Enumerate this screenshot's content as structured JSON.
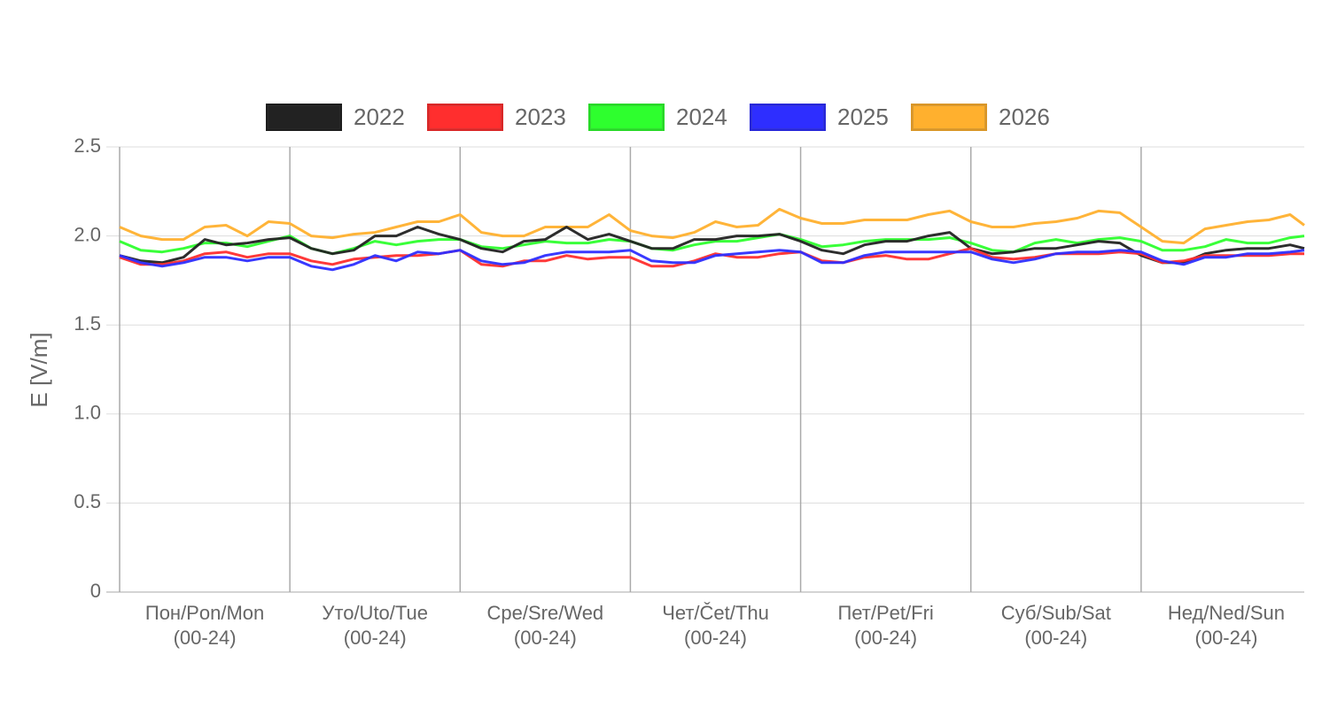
{
  "chart_data": {
    "type": "line",
    "y_label": "E [V/m]",
    "categories": [
      [
        "Пон/Pon/Mon",
        "(00-24)"
      ],
      [
        "Уто/Uto/Tue",
        "(00-24)"
      ],
      [
        "Сре/Sre/Wed",
        "(00-24)"
      ],
      [
        "Чет/Čet/Thu",
        "(00-24)"
      ],
      [
        "Пет/Pet/Fri",
        "(00-24)"
      ],
      [
        "Суб/Sub/Sat",
        "(00-24)"
      ],
      [
        "Нед/Ned/Sun",
        "(00-24)"
      ]
    ],
    "x": [
      0,
      3,
      6,
      9,
      12,
      15,
      18,
      21,
      24,
      27,
      30,
      33,
      36,
      39,
      42,
      45,
      48,
      51,
      54,
      57,
      60,
      63,
      66,
      69,
      72,
      75,
      78,
      81,
      84,
      87,
      90,
      93,
      96,
      99,
      102,
      105,
      108,
      111,
      114,
      117,
      120,
      123,
      126,
      129,
      132,
      135,
      138,
      141,
      144,
      147,
      150,
      153,
      156,
      159,
      162,
      165,
      167
    ],
    "xlim": [
      0,
      167
    ],
    "xticks": [
      0,
      24,
      48,
      72,
      96,
      120,
      144
    ],
    "ylim": [
      0,
      2.5
    ],
    "yticks": [
      0,
      0.5,
      {
        "value": 1,
        "label": "1.0"
      },
      1.5,
      {
        "value": 2,
        "label": "2.0"
      },
      2.5
    ],
    "grid": true,
    "legend": "top",
    "series": [
      {
        "name": "2022",
        "color": "#222222",
        "values": [
          1.89,
          1.86,
          1.85,
          1.88,
          1.98,
          1.95,
          1.96,
          1.98,
          1.99,
          1.93,
          1.9,
          1.92,
          2.0,
          2.0,
          2.05,
          2.01,
          1.98,
          1.93,
          1.91,
          1.97,
          1.98,
          2.05,
          1.98,
          2.01,
          1.97,
          1.93,
          1.93,
          1.98,
          1.98,
          2.0,
          2.0,
          2.01,
          1.97,
          1.92,
          1.9,
          1.95,
          1.97,
          1.97,
          2.0,
          2.02,
          1.93,
          1.9,
          1.91,
          1.93,
          1.93,
          1.95,
          1.97,
          1.96,
          1.89,
          1.85,
          1.85,
          1.9,
          1.92,
          1.93,
          1.93,
          1.95,
          1.93
        ]
      },
      {
        "name": "2023",
        "color": "#ff2e2e",
        "values": [
          1.88,
          1.84,
          1.84,
          1.86,
          1.9,
          1.91,
          1.88,
          1.9,
          1.9,
          1.86,
          1.84,
          1.87,
          1.88,
          1.89,
          1.89,
          1.9,
          1.92,
          1.84,
          1.83,
          1.86,
          1.86,
          1.89,
          1.87,
          1.88,
          1.88,
          1.83,
          1.83,
          1.86,
          1.9,
          1.88,
          1.88,
          1.9,
          1.91,
          1.86,
          1.85,
          1.88,
          1.89,
          1.87,
          1.87,
          1.9,
          1.93,
          1.88,
          1.87,
          1.88,
          1.9,
          1.9,
          1.9,
          1.91,
          1.9,
          1.85,
          1.86,
          1.89,
          1.89,
          1.89,
          1.89,
          1.9,
          1.9
        ]
      },
      {
        "name": "2024",
        "color": "#2eff2e",
        "values": [
          1.97,
          1.92,
          1.91,
          1.93,
          1.96,
          1.96,
          1.94,
          1.97,
          2.0,
          1.93,
          1.9,
          1.93,
          1.97,
          1.95,
          1.97,
          1.98,
          1.98,
          1.94,
          1.93,
          1.95,
          1.97,
          1.96,
          1.96,
          1.98,
          1.97,
          1.93,
          1.92,
          1.95,
          1.97,
          1.97,
          1.99,
          2.01,
          1.98,
          1.94,
          1.95,
          1.97,
          1.98,
          1.98,
          1.98,
          1.99,
          1.96,
          1.92,
          1.91,
          1.96,
          1.98,
          1.96,
          1.98,
          1.99,
          1.97,
          1.92,
          1.92,
          1.94,
          1.98,
          1.96,
          1.96,
          1.99,
          2.0
        ]
      },
      {
        "name": "2025",
        "color": "#2e2eff",
        "values": [
          1.89,
          1.85,
          1.83,
          1.85,
          1.88,
          1.88,
          1.86,
          1.88,
          1.88,
          1.83,
          1.81,
          1.84,
          1.89,
          1.86,
          1.91,
          1.9,
          1.92,
          1.86,
          1.84,
          1.85,
          1.89,
          1.91,
          1.91,
          1.91,
          1.92,
          1.86,
          1.85,
          1.85,
          1.89,
          1.9,
          1.91,
          1.92,
          1.91,
          1.85,
          1.85,
          1.89,
          1.91,
          1.91,
          1.91,
          1.91,
          1.91,
          1.87,
          1.85,
          1.87,
          1.9,
          1.91,
          1.91,
          1.92,
          1.91,
          1.86,
          1.84,
          1.88,
          1.88,
          1.9,
          1.9,
          1.91,
          1.92
        ]
      },
      {
        "name": "2026",
        "color": "#ffb02e",
        "values": [
          2.05,
          2.0,
          1.98,
          1.98,
          2.05,
          2.06,
          2.0,
          2.08,
          2.07,
          2.0,
          1.99,
          2.01,
          2.02,
          2.05,
          2.08,
          2.08,
          2.12,
          2.02,
          2.0,
          2.0,
          2.05,
          2.05,
          2.05,
          2.12,
          2.03,
          2.0,
          1.99,
          2.02,
          2.08,
          2.05,
          2.06,
          2.15,
          2.1,
          2.07,
          2.07,
          2.09,
          2.09,
          2.09,
          2.12,
          2.14,
          2.08,
          2.05,
          2.05,
          2.07,
          2.08,
          2.1,
          2.14,
          2.13,
          2.05,
          1.97,
          1.96,
          2.04,
          2.06,
          2.08,
          2.09,
          2.12,
          2.06
        ]
      }
    ]
  }
}
